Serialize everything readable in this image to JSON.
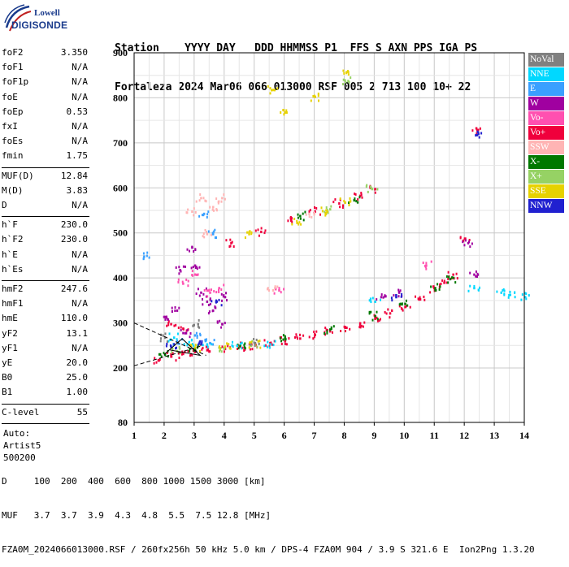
{
  "logo": {
    "line1": "Lowell",
    "line2": "DIGISONDE"
  },
  "header": {
    "line1": "Station    YYYY DAY   DDD HHMMSS P1  FFS S AXN PPS IGA PS",
    "line2": "Fortaleza 2024 Mar06 066 013000 RSF 005 2 713 100 10+ 22"
  },
  "params": {
    "group1": [
      {
        "k": "foF2",
        "v": "3.350"
      },
      {
        "k": "foF1",
        "v": "N/A"
      },
      {
        "k": "foF1p",
        "v": "N/A"
      },
      {
        "k": "foE",
        "v": "N/A"
      },
      {
        "k": "foEp",
        "v": "0.53"
      },
      {
        "k": "fxI",
        "v": "N/A"
      },
      {
        "k": "foEs",
        "v": "N/A"
      },
      {
        "k": "fmin",
        "v": "1.75"
      }
    ],
    "group2": [
      {
        "k": "MUF(D)",
        "v": "12.84"
      },
      {
        "k": "M(D)",
        "v": "3.83"
      },
      {
        "k": "D",
        "v": "N/A"
      }
    ],
    "group3": [
      {
        "k": "h`F",
        "v": "230.0"
      },
      {
        "k": "h`F2",
        "v": "230.0"
      },
      {
        "k": "h`E",
        "v": "N/A"
      },
      {
        "k": "h`Es",
        "v": "N/A"
      }
    ],
    "group4": [
      {
        "k": "hmF2",
        "v": "247.6"
      },
      {
        "k": "hmF1",
        "v": "N/A"
      },
      {
        "k": "hmE",
        "v": "110.0"
      },
      {
        "k": "yF2",
        "v": "13.1"
      },
      {
        "k": "yF1",
        "v": "N/A"
      },
      {
        "k": "yE",
        "v": "20.0"
      },
      {
        "k": "B0",
        "v": "25.0"
      },
      {
        "k": "B1",
        "v": "1.00"
      }
    ],
    "clevel": {
      "k": "C-level",
      "v": "55"
    },
    "auto": [
      "Auto:",
      "Artist5",
      "500200"
    ]
  },
  "legend": [
    {
      "label": "NoVal",
      "color": "#808080"
    },
    {
      "label": "NNE",
      "color": "#00d8ff"
    },
    {
      "label": "E",
      "color": "#3aa0ff"
    },
    {
      "label": "W",
      "color": "#a000a0"
    },
    {
      "label": "Vo-",
      "color": "#ff50b0"
    },
    {
      "label": "Vo+",
      "color": "#f0003c"
    },
    {
      "label": "SSW",
      "color": "#ffb4b4"
    },
    {
      "label": "X-",
      "color": "#007800"
    },
    {
      "label": "X+",
      "color": "#96d264"
    },
    {
      "label": "SSE",
      "color": "#e6d200"
    },
    {
      "label": "NNW",
      "color": "#2020d0"
    }
  ],
  "chart_data": {
    "type": "scatter",
    "xlim": [
      1,
      14
    ],
    "ylim": [
      80,
      900
    ],
    "x_ticks": [
      "1",
      "2",
      "3",
      "4",
      "5",
      "6",
      "7",
      "8",
      "9",
      "10",
      "11",
      "12",
      "13",
      "14"
    ],
    "y_ticks": [
      "80",
      "200",
      "300",
      "400",
      "500",
      "600",
      "700",
      "800",
      "900"
    ],
    "grid": true,
    "legend_placement": "right",
    "series": [
      {
        "name": "Vo+",
        "color": "#f0003c",
        "points": [
          [
            1.8,
            220
          ],
          [
            2.2,
            228
          ],
          [
            2.6,
            234
          ],
          [
            3.0,
            238
          ],
          [
            3.4,
            242
          ],
          [
            4,
            245
          ],
          [
            4.5,
            250
          ],
          [
            5,
            253
          ],
          [
            5.5,
            258
          ],
          [
            6,
            262
          ],
          [
            6.5,
            268
          ],
          [
            7,
            276
          ],
          [
            7.5,
            284
          ],
          [
            8,
            292
          ],
          [
            8.5,
            302
          ],
          [
            9,
            312
          ],
          [
            9.5,
            324
          ],
          [
            10,
            338
          ],
          [
            10.5,
            355
          ],
          [
            11,
            375
          ],
          [
            11.3,
            392
          ],
          [
            11.6,
            410
          ],
          [
            2.2,
            300
          ],
          [
            2.6,
            290
          ],
          [
            4.2,
            480
          ],
          [
            5.2,
            505
          ],
          [
            6.2,
            530
          ],
          [
            7,
            550
          ],
          [
            7.8,
            568
          ],
          [
            8.5,
            585
          ],
          [
            9,
            600
          ],
          [
            12,
            490
          ],
          [
            12.4,
            730
          ]
        ]
      },
      {
        "name": "X-",
        "color": "#007800",
        "points": [
          [
            2,
            232
          ],
          [
            3,
            245
          ],
          [
            4.5,
            252
          ],
          [
            6,
            268
          ],
          [
            7.5,
            288
          ],
          [
            9,
            318
          ],
          [
            10,
            345
          ],
          [
            11,
            380
          ],
          [
            11.5,
            400
          ],
          [
            6.5,
            540
          ],
          [
            8.3,
            575
          ]
        ]
      },
      {
        "name": "W",
        "color": "#a000a0",
        "points": [
          [
            2.1,
            310
          ],
          [
            2.4,
            330
          ],
          [
            2.7,
            280
          ],
          [
            3.0,
            430
          ],
          [
            3.2,
            370
          ],
          [
            3.4,
            350
          ],
          [
            3.6,
            330
          ],
          [
            3.9,
            300
          ],
          [
            4.0,
            360
          ],
          [
            2.5,
            420
          ],
          [
            2.9,
            470
          ],
          [
            12.1,
            480
          ],
          [
            12.3,
            410
          ],
          [
            9.2,
            360
          ],
          [
            9.8,
            370
          ]
        ]
      },
      {
        "name": "Vo-",
        "color": "#ff50b0",
        "points": [
          [
            2.6,
            390
          ],
          [
            3,
            410
          ],
          [
            3.5,
            370
          ],
          [
            3.8,
            380
          ],
          [
            5.8,
            375
          ],
          [
            10.7,
            430
          ]
        ]
      },
      {
        "name": "SSW",
        "color": "#ffb4b4",
        "points": [
          [
            2.9,
            550
          ],
          [
            3.2,
            580
          ],
          [
            3.4,
            500
          ],
          [
            3.6,
            560
          ],
          [
            3.9,
            580
          ],
          [
            5.6,
            375
          ],
          [
            6.8,
            545
          ]
        ]
      },
      {
        "name": "NNE",
        "color": "#00d8ff",
        "points": [
          [
            2.3,
            270
          ],
          [
            2.8,
            260
          ],
          [
            3.4,
            255
          ],
          [
            4.4,
            252
          ],
          [
            5.5,
            255
          ],
          [
            12.3,
            380
          ],
          [
            13.2,
            370
          ],
          [
            13.5,
            365
          ],
          [
            14,
            360
          ],
          [
            9,
            350
          ]
        ]
      },
      {
        "name": "E",
        "color": "#3aa0ff",
        "points": [
          [
            2.4,
            262
          ],
          [
            3.0,
            275
          ],
          [
            3.5,
            258
          ],
          [
            3.6,
            500
          ],
          [
            1.3,
            450
          ],
          [
            3.3,
            545
          ]
        ]
      },
      {
        "name": "X+",
        "color": "#96d264",
        "points": [
          [
            2.4,
            240
          ],
          [
            3.8,
            248
          ],
          [
            5,
            255
          ],
          [
            7.5,
            555
          ],
          [
            8.9,
            600
          ],
          [
            8.1,
            840
          ]
        ]
      },
      {
        "name": "SSE",
        "color": "#e6d200",
        "points": [
          [
            3,
            248
          ],
          [
            4,
            250
          ],
          [
            5,
            254
          ],
          [
            4.8,
            500
          ],
          [
            6.4,
            525
          ],
          [
            7.4,
            550
          ],
          [
            8,
            570
          ],
          [
            5.6,
            820
          ],
          [
            6,
            770
          ],
          [
            7,
            805
          ],
          [
            8.1,
            860
          ]
        ]
      },
      {
        "name": "NNW",
        "color": "#2020d0",
        "points": [
          [
            2.2,
            250
          ],
          [
            3.2,
            255
          ],
          [
            3.7,
            350
          ],
          [
            9.7,
            360
          ],
          [
            12.4,
            720
          ]
        ]
      },
      {
        "name": "NoVal",
        "color": "#808080",
        "points": [
          [
            2.0,
            270
          ],
          [
            3.1,
            300
          ],
          [
            5,
            258
          ]
        ]
      }
    ]
  },
  "footer": {
    "line1": "D     100  200  400  600  800 1000 1500 3000 [km]",
    "line2": "MUF   3.7  3.7  3.9  4.3  4.8  5.5  7.5 12.8 [MHz]",
    "line3": "FZA0M_2024066013000.RSF / 260fx256h 50 kHz 5.0 km / DPS-4 FZA0M 904 / 3.9 S 321.6 E  Ion2Png 1.3.20"
  }
}
